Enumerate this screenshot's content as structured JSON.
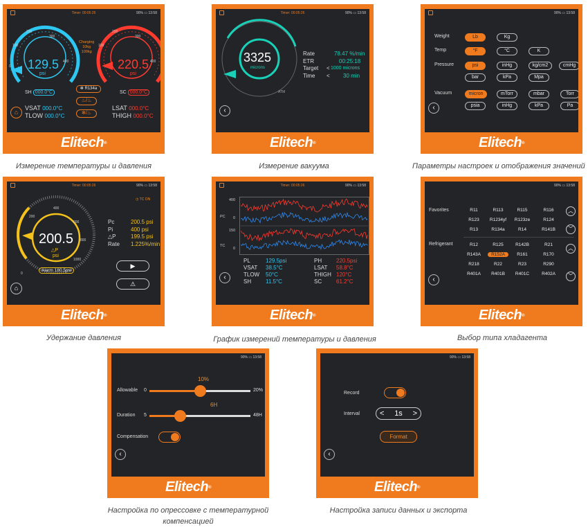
{
  "brand": "Elitech",
  "colors": {
    "accent": "#f07b1e",
    "screen": "#222427",
    "cyan": "#2ec7f2",
    "red": "#ff3b30",
    "teal": "#18d1b8",
    "yellow": "#f4c21b"
  },
  "status": {
    "timer": "Timer: 00:05:26",
    "battery": "90%",
    "clock": "13:58"
  },
  "captions": {
    "p1": "Измерение температуры и давления",
    "p2": "Измерение вакуума",
    "p3": "Параметры настроек и отображения значений",
    "p4": "Удержание давления",
    "p5": "График измерений температуры и давления",
    "p6": "Выбор типа хладагента",
    "p7": "Настройка по опрессовке с температурной компенсацией",
    "p8": "Настройка записи данных и экспорта"
  },
  "p1": {
    "left_value": "129.5",
    "left_unit": "psi",
    "right_value": "220.5",
    "right_unit": "psi",
    "ticks_left": [
      "0",
      "100",
      "200",
      "300",
      "400",
      "500"
    ],
    "ticks_right": [
      "0",
      "100",
      "200",
      "300",
      "400",
      "500"
    ],
    "charging": "Charging",
    "charge1": "10kg",
    "charge2": "100kg",
    "refrigerant": "R134a",
    "sh_label": "SH",
    "sh_value": "000.0°C",
    "sc_label": "SC",
    "sc_value": "000.0°C",
    "vsat_label": "VSAT",
    "vsat_value": "000.0°C",
    "tlow_label": "TLOW",
    "tlow_value": "000.0°C",
    "lsat_label": "LSAT",
    "lsat_value": "000.0°C",
    "thigh_label": "THIGH",
    "thigh_value": "000.0°C"
  },
  "p2": {
    "value": "3325",
    "unit": "microns",
    "atm": "ATM",
    "rows": [
      {
        "label": "Rate",
        "value": "78.47 %/min"
      },
      {
        "label": "ETR",
        "value": "00:25:18"
      },
      {
        "label": "Target",
        "value": "1000 microns"
      },
      {
        "label": "Time",
        "value": "30 min"
      }
    ]
  },
  "p3": {
    "weight_label": "Weight",
    "weight": [
      "Lb",
      "Kg"
    ],
    "temp_label": "Temp",
    "temp": [
      "°F",
      "°C",
      "K"
    ],
    "pressure_label": "Pressure",
    "pressure": [
      "psi",
      "inHg",
      "kg/cm2",
      "cmHg",
      "bar",
      "kPa",
      "Mpa"
    ],
    "vacuum_label": "Vacuum",
    "vacuum": [
      "micron",
      "mTorr",
      "mbar",
      "Torr",
      "psia",
      "inHg",
      "kPa",
      "Pa"
    ]
  },
  "p4": {
    "value": "200.5",
    "delta_label": "△P",
    "unit": "psi",
    "alarm": "Alarm 180.5psi",
    "tc": "TC ON",
    "ticks": [
      "0",
      "200",
      "400",
      "600",
      "800",
      "1000"
    ],
    "rows": [
      {
        "label": "Pc",
        "value": "200.5 psi"
      },
      {
        "label": "Pi",
        "value": "400 psi"
      },
      {
        "label": "△P",
        "value": "199.5 psi"
      },
      {
        "label": "Rate",
        "value": "1.225%/min"
      }
    ]
  },
  "p5": {
    "pc_label": "PC",
    "tc_label": "TC",
    "pc_ticks": [
      "400",
      "0"
    ],
    "tc_ticks": [
      "150",
      "0"
    ],
    "left": [
      {
        "label": "PL",
        "value": "129.5psi"
      },
      {
        "label": "VSAT",
        "value": "38.5°C"
      },
      {
        "label": "TLOW",
        "value": "50°C"
      },
      {
        "label": "SH",
        "value": "11.5°C"
      }
    ],
    "right": [
      {
        "label": "PH",
        "value": "220.5psi"
      },
      {
        "label": "LSAT",
        "value": "58.8°C"
      },
      {
        "label": "THIGH",
        "value": "120°C"
      },
      {
        "label": "SC",
        "value": "61.2°C"
      }
    ]
  },
  "p6": {
    "favorites_label": "Favorites",
    "favorites": [
      "R11",
      "R113",
      "R115",
      "R116",
      "R123",
      "R1234yf",
      "R123ze",
      "R124",
      "R13",
      "R134a",
      "R14",
      "R141B"
    ],
    "refrigerant_label": "Refrigerant",
    "refrigerants": [
      "R12",
      "R125",
      "R142B",
      "R21",
      "R143A",
      "R152A",
      "R161",
      "R170",
      "R218",
      "R22",
      "R23",
      "R290",
      "R401A",
      "R401B",
      "R401C",
      "R402A"
    ],
    "selected": "R152A"
  },
  "p7": {
    "allowable_label": "Allowable",
    "allowable_min": "0",
    "allowable_max": "20%",
    "allowable_value": "10%",
    "allowable_fraction": 0.5,
    "duration_label": "Duration",
    "duration_min": "5",
    "duration_max": "48H",
    "duration_value": "6H",
    "duration_fraction": 0.3,
    "compensation_label": "Compensation"
  },
  "p8": {
    "record_label": "Record",
    "interval_label": "Interval",
    "interval_value": "1s",
    "format_label": "Format"
  }
}
